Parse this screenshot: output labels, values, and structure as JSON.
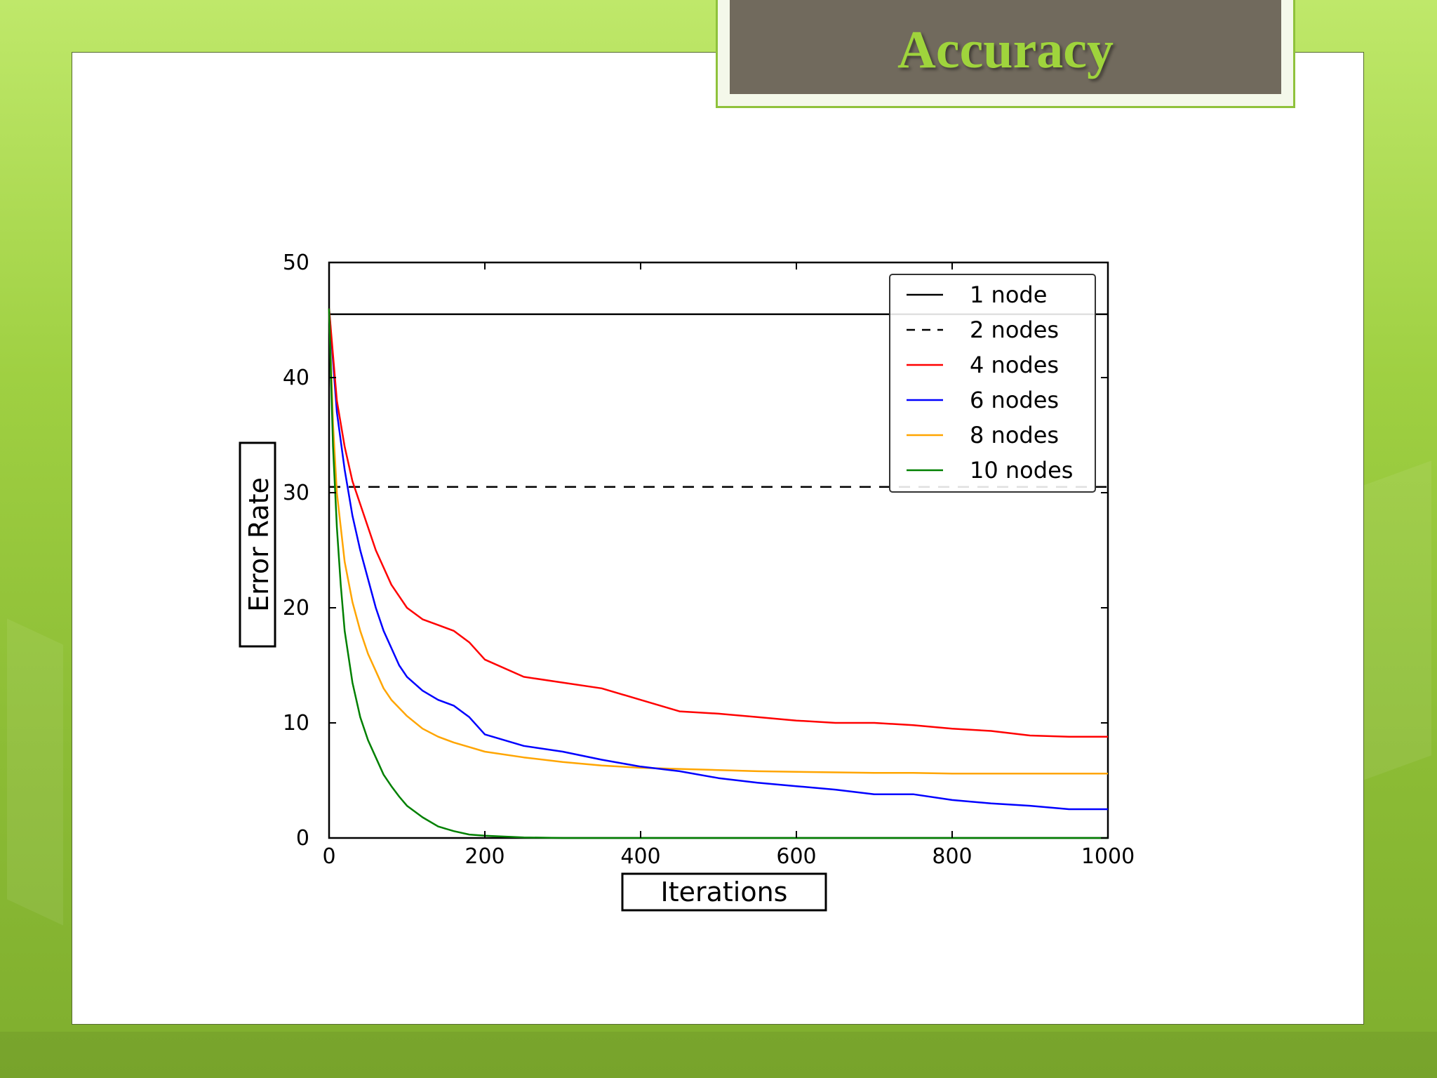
{
  "slide": {
    "title": "Accuracy"
  },
  "colors": {
    "background_green": "#9fd042",
    "title_box": "#716a5d",
    "title_text": "#9fd43c"
  },
  "chart_data": {
    "type": "line",
    "title": "",
    "xlabel": "Iterations",
    "ylabel": "Error Rate",
    "xlim": [
      0,
      1000
    ],
    "ylim": [
      0,
      50
    ],
    "xticks": [
      0,
      200,
      400,
      600,
      800,
      1000
    ],
    "yticks": [
      0,
      10,
      20,
      30,
      40,
      50
    ],
    "grid": false,
    "legend_position": "top-right",
    "series": [
      {
        "name": "1 node",
        "color": "#000000",
        "style": "solid",
        "x": [
          0,
          1000
        ],
        "y": [
          45.5,
          45.5
        ]
      },
      {
        "name": "2 nodes",
        "color": "#000000",
        "style": "dashed",
        "x": [
          0,
          1000
        ],
        "y": [
          30.5,
          30.5
        ]
      },
      {
        "name": "4 nodes",
        "color": "#ff0000",
        "style": "solid",
        "x": [
          0,
          10,
          20,
          30,
          40,
          50,
          60,
          70,
          80,
          90,
          100,
          120,
          140,
          160,
          180,
          200,
          250,
          300,
          350,
          400,
          450,
          500,
          550,
          600,
          650,
          700,
          750,
          800,
          850,
          900,
          950,
          1000
        ],
        "y": [
          46,
          38,
          34,
          31,
          29,
          27,
          25,
          23.5,
          22,
          21,
          20,
          19,
          18.5,
          18,
          17,
          15.5,
          14,
          13.5,
          13,
          12,
          11,
          10.8,
          10.5,
          10.2,
          10,
          10,
          9.8,
          9.5,
          9.3,
          8.9,
          8.8,
          8.8
        ]
      },
      {
        "name": "6 nodes",
        "color": "#0000ff",
        "style": "solid",
        "x": [
          0,
          10,
          20,
          30,
          40,
          50,
          60,
          70,
          80,
          90,
          100,
          120,
          140,
          160,
          180,
          200,
          250,
          300,
          350,
          400,
          450,
          500,
          550,
          600,
          650,
          700,
          750,
          800,
          850,
          900,
          950,
          1000
        ],
        "y": [
          46,
          37,
          32,
          28,
          25,
          22.5,
          20,
          18,
          16.5,
          15,
          14,
          12.8,
          12,
          11.5,
          10.5,
          9,
          8,
          7.5,
          6.8,
          6.2,
          5.8,
          5.2,
          4.8,
          4.5,
          4.2,
          3.8,
          3.8,
          3.3,
          3.0,
          2.8,
          2.5,
          2.5
        ]
      },
      {
        "name": "8 nodes",
        "color": "#ffa500",
        "style": "solid",
        "x": [
          0,
          5,
          10,
          20,
          30,
          40,
          50,
          60,
          70,
          80,
          90,
          100,
          120,
          140,
          160,
          180,
          200,
          250,
          300,
          350,
          400,
          450,
          500,
          550,
          600,
          650,
          700,
          750,
          800,
          850,
          900,
          950,
          1000
        ],
        "y": [
          46,
          36,
          30,
          24,
          20.5,
          18,
          16,
          14.5,
          13,
          12,
          11.3,
          10.6,
          9.5,
          8.8,
          8.3,
          7.9,
          7.5,
          7.0,
          6.6,
          6.3,
          6.1,
          6.0,
          5.9,
          5.8,
          5.75,
          5.7,
          5.65,
          5.65,
          5.6,
          5.6,
          5.6,
          5.6,
          5.6
        ]
      },
      {
        "name": "10 nodes",
        "color": "#008000",
        "style": "solid",
        "x": [
          0,
          5,
          10,
          15,
          20,
          30,
          40,
          50,
          60,
          70,
          80,
          90,
          100,
          120,
          140,
          160,
          180,
          200,
          250,
          300,
          400,
          500,
          600,
          700,
          800,
          900,
          1000
        ],
        "y": [
          46,
          34,
          27,
          22,
          18,
          13.5,
          10.5,
          8.5,
          7,
          5.5,
          4.5,
          3.6,
          2.8,
          1.8,
          1.0,
          0.6,
          0.3,
          0.2,
          0.05,
          0,
          0,
          0,
          0,
          0,
          0,
          0,
          0
        ]
      }
    ]
  }
}
